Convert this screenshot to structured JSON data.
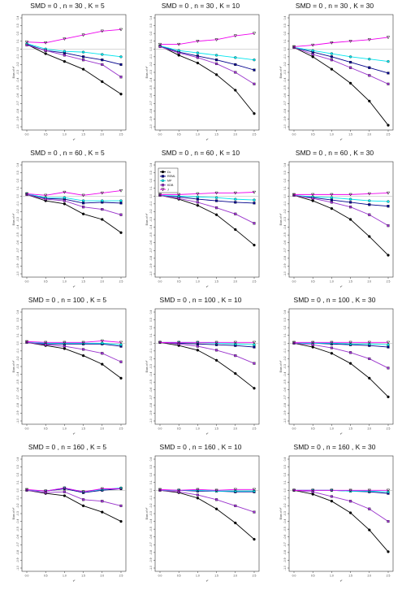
{
  "colors": {
    "DL": "#000000",
    "REML": "#00008b",
    "MP": "#00e5ee",
    "KDB": "#9932cc",
    "J": "#ee00ee",
    "zero_line": "#bfbfbf"
  },
  "legend": {
    "placement": "top-left",
    "entries": [
      "DL",
      "REML",
      "MP",
      "KDB",
      "J"
    ]
  },
  "chart_data": [
    {
      "type": "line",
      "title": "SMD = 0 , n = 30 , K = 5",
      "xlabel": "τ²",
      "ylabel": "Bias of τ²",
      "x": [
        0.0,
        0.5,
        1.0,
        1.5,
        2.0,
        2.5
      ],
      "xticks": [
        "0.0",
        "0.5",
        "1.0",
        "1.5",
        "2.0",
        "2.5"
      ],
      "ylim": [
        -1.0,
        0.4
      ],
      "yticks": [
        "-1.0",
        "-0.9",
        "-0.8",
        "-0.7",
        "-0.6",
        "-0.5",
        "-0.4",
        "-0.3",
        "-0.2",
        "-0.1",
        "0.0",
        "0.1",
        "0.2",
        "0.3",
        "0.4"
      ],
      "series": [
        {
          "name": "DL",
          "values": [
            0.06,
            -0.06,
            -0.16,
            -0.26,
            -0.42,
            -0.58
          ]
        },
        {
          "name": "REML",
          "values": [
            0.06,
            -0.02,
            -0.05,
            -0.1,
            -0.14,
            -0.2
          ]
        },
        {
          "name": "MP",
          "values": [
            0.07,
            0.0,
            -0.03,
            -0.04,
            -0.07,
            -0.1
          ]
        },
        {
          "name": "KDB",
          "values": [
            0.05,
            -0.02,
            -0.08,
            -0.14,
            -0.2,
            -0.36
          ]
        },
        {
          "name": "J",
          "values": [
            0.09,
            0.08,
            0.13,
            0.18,
            0.23,
            0.25
          ]
        }
      ]
    },
    {
      "type": "line",
      "title": "SMD = 0 , n = 30 , K = 10",
      "xlabel": "τ²",
      "ylabel": "Bias of τ²",
      "x": [
        0.0,
        0.5,
        1.0,
        1.5,
        2.0,
        2.5
      ],
      "xticks": [
        "0.0",
        "0.5",
        "1.0",
        "1.5",
        "2.0",
        "2.5"
      ],
      "ylim": [
        -1.0,
        0.4
      ],
      "yticks": [
        "-1.0",
        "-0.9",
        "-0.8",
        "-0.7",
        "-0.6",
        "-0.5",
        "-0.4",
        "-0.3",
        "-0.2",
        "-0.1",
        "0.0",
        "0.1",
        "0.2",
        "0.3",
        "0.4"
      ],
      "series": [
        {
          "name": "DL",
          "values": [
            0.04,
            -0.08,
            -0.18,
            -0.33,
            -0.53,
            -0.83
          ]
        },
        {
          "name": "REML",
          "values": [
            0.04,
            -0.04,
            -0.09,
            -0.14,
            -0.2,
            -0.27
          ]
        },
        {
          "name": "MP",
          "values": [
            0.04,
            -0.02,
            -0.05,
            -0.08,
            -0.11,
            -0.14
          ]
        },
        {
          "name": "KDB",
          "values": [
            0.03,
            -0.05,
            -0.11,
            -0.19,
            -0.3,
            -0.45
          ]
        },
        {
          "name": "J",
          "values": [
            0.06,
            0.06,
            0.1,
            0.12,
            0.17,
            0.2
          ]
        }
      ]
    },
    {
      "type": "line",
      "title": "SMD = 0 , n = 30 , K = 30",
      "xlabel": "τ²",
      "ylabel": "Bias of τ²",
      "x": [
        0.0,
        0.5,
        1.0,
        1.5,
        2.0,
        2.5
      ],
      "xticks": [
        "0.0",
        "0.5",
        "1.0",
        "1.5",
        "2.0",
        "2.5"
      ],
      "ylim": [
        -1.0,
        0.4
      ],
      "yticks": [
        "-1.0",
        "-0.9",
        "-0.8",
        "-0.7",
        "-0.6",
        "-0.5",
        "-0.4",
        "-0.3",
        "-0.2",
        "-0.1",
        "0.0",
        "0.1",
        "0.2",
        "0.3",
        "0.4"
      ],
      "series": [
        {
          "name": "DL",
          "values": [
            0.02,
            -0.1,
            -0.26,
            -0.44,
            -0.67,
            -0.98
          ]
        },
        {
          "name": "REML",
          "values": [
            0.02,
            -0.04,
            -0.1,
            -0.17,
            -0.24,
            -0.31
          ]
        },
        {
          "name": "MP",
          "values": [
            0.02,
            -0.02,
            -0.06,
            -0.1,
            -0.13,
            -0.16
          ]
        },
        {
          "name": "KDB",
          "values": [
            0.02,
            -0.07,
            -0.14,
            -0.24,
            -0.34,
            -0.45
          ]
        },
        {
          "name": "J",
          "values": [
            0.03,
            0.05,
            0.08,
            0.1,
            0.12,
            0.15
          ]
        }
      ]
    },
    {
      "type": "line",
      "title": "SMD = 0 , n = 60 , K = 5",
      "xlabel": "τ²",
      "ylabel": "Bias of τ²",
      "x": [
        0.0,
        0.5,
        1.0,
        1.5,
        2.0,
        2.5
      ],
      "xticks": [
        "0.0",
        "0.5",
        "1.0",
        "1.5",
        "2.0",
        "2.5"
      ],
      "ylim": [
        -1.0,
        0.4
      ],
      "yticks": [
        "-1.0",
        "-0.9",
        "-0.8",
        "-0.7",
        "-0.6",
        "-0.5",
        "-0.4",
        "-0.3",
        "-0.2",
        "-0.1",
        "0.0",
        "0.1",
        "0.2",
        "0.3",
        "0.4"
      ],
      "series": [
        {
          "name": "DL",
          "values": [
            0.02,
            -0.06,
            -0.1,
            -0.23,
            -0.3,
            -0.47
          ]
        },
        {
          "name": "REML",
          "values": [
            0.02,
            -0.03,
            -0.04,
            -0.09,
            -0.08,
            -0.09
          ]
        },
        {
          "name": "MP",
          "values": [
            0.03,
            -0.02,
            -0.02,
            -0.06,
            -0.06,
            -0.06
          ]
        },
        {
          "name": "KDB",
          "values": [
            0.02,
            -0.04,
            -0.06,
            -0.14,
            -0.17,
            -0.24
          ]
        },
        {
          "name": "J",
          "values": [
            0.03,
            0.01,
            0.05,
            0.01,
            0.04,
            0.07
          ]
        }
      ]
    },
    {
      "type": "line",
      "title": "SMD = 0 , n = 60 , K = 10",
      "xlabel": "τ²",
      "ylabel": "Bias of τ²",
      "x": [
        0.0,
        0.5,
        1.0,
        1.5,
        2.0,
        2.5
      ],
      "xticks": [
        "0.0",
        "0.5",
        "1.0",
        "1.5",
        "2.0",
        "2.5"
      ],
      "ylim": [
        -1.0,
        0.4
      ],
      "yticks": [
        "-1.0",
        "-0.9",
        "-0.8",
        "-0.7",
        "-0.6",
        "-0.5",
        "-0.4",
        "-0.3",
        "-0.2",
        "-0.1",
        "0.0",
        "0.1",
        "0.2",
        "0.3",
        "0.4"
      ],
      "series": [
        {
          "name": "DL",
          "values": [
            0.01,
            -0.04,
            -0.12,
            -0.24,
            -0.43,
            -0.63
          ]
        },
        {
          "name": "REML",
          "values": [
            0.01,
            -0.01,
            -0.04,
            -0.06,
            -0.08,
            -0.09
          ]
        },
        {
          "name": "MP",
          "values": [
            0.01,
            0.0,
            -0.01,
            -0.02,
            -0.04,
            -0.05
          ]
        },
        {
          "name": "KDB",
          "values": [
            0.01,
            -0.03,
            -0.08,
            -0.15,
            -0.23,
            -0.35
          ]
        },
        {
          "name": "J",
          "values": [
            0.02,
            0.02,
            0.03,
            0.04,
            0.04,
            0.05
          ]
        }
      ]
    },
    {
      "type": "line",
      "title": "SMD = 0 , n = 60 , K = 30",
      "xlabel": "τ²",
      "ylabel": "Bias of τ²",
      "x": [
        0.0,
        0.5,
        1.0,
        1.5,
        2.0,
        2.5
      ],
      "xticks": [
        "0.0",
        "0.5",
        "1.0",
        "1.5",
        "2.0",
        "2.5"
      ],
      "ylim": [
        -1.0,
        0.4
      ],
      "yticks": [
        "-1.0",
        "-0.9",
        "-0.8",
        "-0.7",
        "-0.6",
        "-0.5",
        "-0.4",
        "-0.3",
        "-0.2",
        "-0.1",
        "0.0",
        "0.1",
        "0.2",
        "0.3",
        "0.4"
      ],
      "series": [
        {
          "name": "DL",
          "values": [
            0.01,
            -0.06,
            -0.16,
            -0.3,
            -0.52,
            -0.76
          ]
        },
        {
          "name": "REML",
          "values": [
            0.01,
            -0.02,
            -0.05,
            -0.08,
            -0.11,
            -0.13
          ]
        },
        {
          "name": "MP",
          "values": [
            0.01,
            -0.01,
            -0.02,
            -0.04,
            -0.06,
            -0.07
          ]
        },
        {
          "name": "KDB",
          "values": [
            0.01,
            -0.03,
            -0.08,
            -0.14,
            -0.24,
            -0.38
          ]
        },
        {
          "name": "J",
          "values": [
            0.02,
            0.02,
            0.02,
            0.02,
            0.03,
            0.04
          ]
        }
      ]
    },
    {
      "type": "line",
      "title": "SMD = 0 , n = 100 , K = 5",
      "xlabel": "τ²",
      "ylabel": "Bias of τ²",
      "x": [
        0.0,
        0.5,
        1.0,
        1.5,
        2.0,
        2.5
      ],
      "xticks": [
        "0.0",
        "0.5",
        "1.0",
        "1.5",
        "2.0",
        "2.5"
      ],
      "ylim": [
        -1.0,
        0.4
      ],
      "yticks": [
        "-1.0",
        "-0.9",
        "-0.8",
        "-0.7",
        "-0.6",
        "-0.5",
        "-0.4",
        "-0.3",
        "-0.2",
        "-0.1",
        "0.0",
        "0.1",
        "0.2",
        "0.3",
        "0.4"
      ],
      "series": [
        {
          "name": "DL",
          "values": [
            0.01,
            -0.03,
            -0.07,
            -0.16,
            -0.27,
            -0.45
          ]
        },
        {
          "name": "REML",
          "values": [
            0.01,
            -0.01,
            -0.01,
            -0.01,
            -0.01,
            -0.04
          ]
        },
        {
          "name": "MP",
          "values": [
            0.01,
            0.0,
            0.0,
            0.0,
            0.0,
            -0.02
          ]
        },
        {
          "name": "KDB",
          "values": [
            0.01,
            -0.02,
            -0.04,
            -0.08,
            -0.13,
            -0.24
          ]
        },
        {
          "name": "J",
          "values": [
            0.02,
            0.01,
            0.01,
            0.01,
            0.03,
            0.01
          ]
        }
      ]
    },
    {
      "type": "line",
      "title": "SMD = 0 , n = 100 , K = 10",
      "xlabel": "τ²",
      "ylabel": "Bias of τ²",
      "x": [
        0.0,
        0.5,
        1.0,
        1.5,
        2.0,
        2.5
      ],
      "xticks": [
        "0.0",
        "0.5",
        "1.0",
        "1.5",
        "2.0",
        "2.5"
      ],
      "ylim": [
        -1.0,
        0.4
      ],
      "yticks": [
        "-1.0",
        "-0.9",
        "-0.8",
        "-0.7",
        "-0.6",
        "-0.5",
        "-0.4",
        "-0.3",
        "-0.2",
        "-0.1",
        "0.0",
        "0.1",
        "0.2",
        "0.3",
        "0.4"
      ],
      "series": [
        {
          "name": "DL",
          "values": [
            0.01,
            -0.03,
            -0.09,
            -0.22,
            -0.39,
            -0.58
          ]
        },
        {
          "name": "REML",
          "values": [
            0.01,
            0.0,
            -0.01,
            -0.02,
            -0.03,
            -0.05
          ]
        },
        {
          "name": "MP",
          "values": [
            0.01,
            0.01,
            0.01,
            0.0,
            -0.01,
            -0.02
          ]
        },
        {
          "name": "KDB",
          "values": [
            0.01,
            -0.01,
            -0.04,
            -0.09,
            -0.16,
            -0.26
          ]
        },
        {
          "name": "J",
          "values": [
            0.01,
            0.01,
            0.01,
            0.01,
            0.01,
            0.01
          ]
        }
      ]
    },
    {
      "type": "line",
      "title": "SMD = 0 , n = 100 , K = 30",
      "xlabel": "τ²",
      "ylabel": "Bias of τ²",
      "x": [
        0.0,
        0.5,
        1.0,
        1.5,
        2.0,
        2.5
      ],
      "xticks": [
        "0.0",
        "0.5",
        "1.0",
        "1.5",
        "2.0",
        "2.5"
      ],
      "ylim": [
        -1.0,
        0.4
      ],
      "yticks": [
        "-1.0",
        "-0.9",
        "-0.8",
        "-0.7",
        "-0.6",
        "-0.5",
        "-0.4",
        "-0.3",
        "-0.2",
        "-0.1",
        "0.0",
        "0.1",
        "0.2",
        "0.3",
        "0.4"
      ],
      "series": [
        {
          "name": "DL",
          "values": [
            0.0,
            -0.05,
            -0.13,
            -0.26,
            -0.45,
            -0.69
          ]
        },
        {
          "name": "REML",
          "values": [
            0.0,
            0.0,
            -0.01,
            -0.02,
            -0.03,
            -0.05
          ]
        },
        {
          "name": "MP",
          "values": [
            0.0,
            0.0,
            0.0,
            -0.01,
            -0.01,
            -0.02
          ]
        },
        {
          "name": "KDB",
          "values": [
            0.0,
            -0.02,
            -0.06,
            -0.12,
            -0.2,
            -0.32
          ]
        },
        {
          "name": "J",
          "values": [
            0.01,
            0.01,
            0.01,
            0.01,
            0.01,
            0.01
          ]
        }
      ]
    },
    {
      "type": "line",
      "title": "SMD = 0 , n = 160 , K = 5",
      "xlabel": "τ²",
      "ylabel": "Bias of τ²",
      "x": [
        0.0,
        0.5,
        1.0,
        1.5,
        2.0,
        2.5
      ],
      "xticks": [
        "0.0",
        "0.5",
        "1.0",
        "1.5",
        "2.0",
        "2.5"
      ],
      "ylim": [
        -1.0,
        0.4
      ],
      "yticks": [
        "-1.0",
        "-0.9",
        "-0.8",
        "-0.7",
        "-0.6",
        "-0.5",
        "-0.4",
        "-0.3",
        "-0.2",
        "-0.1",
        "0.0",
        "0.1",
        "0.2",
        "0.3",
        "0.4"
      ],
      "series": [
        {
          "name": "DL",
          "values": [
            0.0,
            -0.04,
            -0.07,
            -0.2,
            -0.28,
            -0.4
          ]
        },
        {
          "name": "REML",
          "values": [
            0.0,
            -0.01,
            0.02,
            -0.03,
            0.0,
            0.02
          ]
        },
        {
          "name": "MP",
          "values": [
            0.0,
            -0.01,
            0.03,
            -0.02,
            0.01,
            0.03
          ]
        },
        {
          "name": "KDB",
          "values": [
            0.0,
            -0.03,
            -0.02,
            -0.12,
            -0.14,
            -0.2
          ]
        },
        {
          "name": "J",
          "values": [
            0.01,
            -0.01,
            0.03,
            -0.02,
            0.02,
            0.02
          ]
        }
      ]
    },
    {
      "type": "line",
      "title": "SMD = 0 , n = 160 , K = 10",
      "xlabel": "τ²",
      "ylabel": "Bias of τ²",
      "x": [
        0.0,
        0.5,
        1.0,
        1.5,
        2.0,
        2.5
      ],
      "xticks": [
        "0.0",
        "0.5",
        "1.0",
        "1.5",
        "2.0",
        "2.5"
      ],
      "ylim": [
        -1.0,
        0.4
      ],
      "yticks": [
        "-1.0",
        "-0.9",
        "-0.8",
        "-0.7",
        "-0.6",
        "-0.5",
        "-0.4",
        "-0.3",
        "-0.2",
        "-0.1",
        "0.0",
        "0.1",
        "0.2",
        "0.3",
        "0.4"
      ],
      "series": [
        {
          "name": "DL",
          "values": [
            0.0,
            -0.03,
            -0.1,
            -0.24,
            -0.42,
            -0.63
          ]
        },
        {
          "name": "REML",
          "values": [
            0.0,
            0.0,
            -0.01,
            -0.01,
            -0.02,
            -0.02
          ]
        },
        {
          "name": "MP",
          "values": [
            0.0,
            0.0,
            0.0,
            -0.01,
            -0.01,
            -0.01
          ]
        },
        {
          "name": "KDB",
          "values": [
            0.0,
            -0.02,
            -0.06,
            -0.12,
            -0.2,
            -0.28
          ]
        },
        {
          "name": "J",
          "values": [
            0.01,
            0.0,
            0.01,
            0.0,
            0.01,
            0.01
          ]
        }
      ]
    },
    {
      "type": "line",
      "title": "SMD = 0 , n = 160 , K = 30",
      "xlabel": "τ²",
      "ylabel": "Bias of τ²",
      "x": [
        0.0,
        0.5,
        1.0,
        1.5,
        2.0,
        2.5
      ],
      "xticks": [
        "0.0",
        "0.5",
        "1.0",
        "1.5",
        "2.0",
        "2.5"
      ],
      "ylim": [
        -1.0,
        0.4
      ],
      "yticks": [
        "-1.0",
        "-0.9",
        "-0.8",
        "-0.7",
        "-0.6",
        "-0.5",
        "-0.4",
        "-0.3",
        "-0.2",
        "-0.1",
        "0.0",
        "0.1",
        "0.2",
        "0.3",
        "0.4"
      ],
      "series": [
        {
          "name": "DL",
          "values": [
            0.0,
            -0.05,
            -0.14,
            -0.29,
            -0.51,
            -0.79
          ]
        },
        {
          "name": "REML",
          "values": [
            0.0,
            0.0,
            0.0,
            -0.01,
            -0.02,
            -0.04
          ]
        },
        {
          "name": "MP",
          "values": [
            0.0,
            0.0,
            0.0,
            -0.01,
            -0.01,
            -0.02
          ]
        },
        {
          "name": "KDB",
          "values": [
            0.0,
            -0.02,
            -0.08,
            -0.14,
            -0.24,
            -0.4
          ]
        },
        {
          "name": "J",
          "values": [
            0.0,
            0.0,
            0.0,
            0.0,
            0.0,
            0.0
          ]
        }
      ]
    }
  ]
}
